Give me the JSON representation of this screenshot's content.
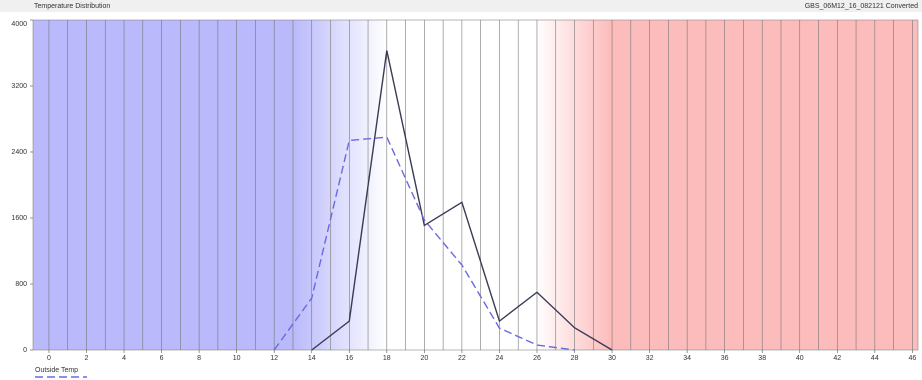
{
  "chart_data": {
    "type": "line",
    "title": "Temperature Distribution",
    "subtitle": "GBS_06M12_16_082121 Converted",
    "x": [
      12,
      14,
      16,
      18,
      20,
      22,
      24,
      26,
      28,
      30
    ],
    "series": [
      {
        "color": "#3a3a55",
        "dash": false,
        "values": [
          null,
          0,
          350,
          3630,
          1510,
          1790,
          350,
          700,
          270,
          0
        ]
      },
      {
        "name": "Outside Temp",
        "color": "#6a6ae0",
        "dash": true,
        "values": [
          0,
          630,
          2540,
          2580,
          1575,
          1030,
          266,
          60,
          0,
          null
        ]
      }
    ],
    "xlim": [
      -0.85,
      46.3
    ],
    "xticks": [
      0,
      2,
      4,
      6,
      8,
      10,
      12,
      14,
      16,
      18,
      20,
      22,
      24,
      26,
      28,
      30,
      32,
      34,
      36,
      38,
      40,
      42,
      44,
      46
    ],
    "ylim": [
      0,
      4000
    ],
    "yticks": [
      0,
      800,
      1600,
      2400,
      3200,
      4000
    ],
    "grid": true
  }
}
